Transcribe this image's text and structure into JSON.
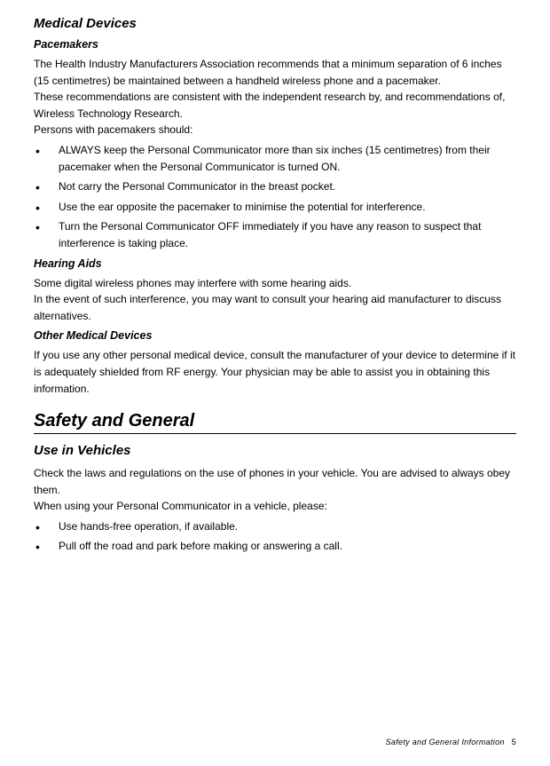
{
  "medical": {
    "title": "Medical Devices",
    "pacemakers": {
      "title": "Pacemakers",
      "p1": "The Health Industry Manufacturers Association recommends that a minimum separation of 6 inches",
      "p2": "(15 centimetres) be maintained between a handheld wireless phone and a pacemaker.",
      "p3": "These recommendations are consistent with the independent research by, and recommendations of, Wireless Technology Research.",
      "p4": "Persons with pacemakers should:",
      "bullets": [
        "ALWAYS keep the Personal Communicator more than six inches (15 centimetres) from their pacemaker when the Personal Communicator is turned ON.",
        "Not carry the Personal Communicator in the breast pocket.",
        "Use the ear opposite the pacemaker to minimise the potential for interference.",
        "Turn the Personal Communicator OFF immediately if you have any reason to suspect that interference is taking place."
      ]
    },
    "hearing": {
      "title": "Hearing Aids",
      "p1": "Some digital wireless phones may interfere with some hearing aids.",
      "p2": "In the event of such interference, you may want to consult your hearing aid manufacturer to discuss alternatives."
    },
    "other": {
      "title": "Other Medical Devices",
      "p1": "If you use any other personal medical device, consult the manufacturer of your device to determine if it is adequately shielded from RF energy. Your physician may be able to assist you in obtaining this information."
    }
  },
  "safety": {
    "title": "Safety and General",
    "vehicles": {
      "title": "Use in Vehicles",
      "p1": "Check the laws and regulations on the use of phones in your vehicle. You are advised to always obey them.",
      "p2": "When using your Personal Communicator in a vehicle, please:",
      "bullets": [
        "Use hands-free operation, if available.",
        "Pull off the road and park before making or answering a call."
      ]
    }
  },
  "footer": {
    "text": "Safety and General Information",
    "page": "5"
  }
}
